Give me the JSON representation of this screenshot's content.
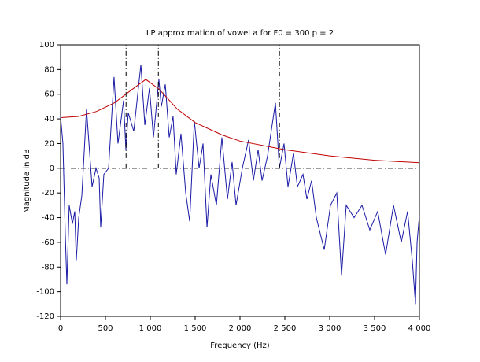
{
  "chart_data": {
    "type": "line",
    "title": "LP approximation of vowel a for F0 = 300 p = 2",
    "xlabel": "Frequency (Hz)",
    "ylabel": "Magnitude in dB",
    "xlim": [
      0,
      4000
    ],
    "ylim": [
      -120,
      100
    ],
    "xticks": [
      0,
      500,
      {
        "value": 1000,
        "label": "1 000"
      },
      {
        "value": 1500,
        "label": "1 500"
      },
      {
        "value": 2000,
        "label": "2 000"
      },
      {
        "value": 2500,
        "label": "2 500"
      },
      {
        "value": 3000,
        "label": "3 000"
      },
      {
        "value": 3500,
        "label": "3 500"
      },
      {
        "value": 4000,
        "label": "4 000"
      }
    ],
    "yticks": [
      -120,
      -100,
      -80,
      -60,
      -40,
      -20,
      0,
      20,
      40,
      60,
      80,
      100
    ],
    "markers_x": [
      730,
      1090,
      2440
    ],
    "hlines": [
      0
    ],
    "series": [
      {
        "color": "#1a1aa6",
        "x": [
          0,
          26,
          53,
          70,
          96,
          132,
          158,
          175,
          202,
          237,
          289,
          351,
          395,
          430,
          447,
          482,
          535,
          596,
          640,
          702,
          728,
          754,
          816,
          895,
          939,
          991,
          1035,
          1096,
          1123,
          1167,
          1211,
          1254,
          1289,
          1342,
          1395,
          1439,
          1491,
          1544,
          1588,
          1632,
          1675,
          1737,
          1798,
          1860,
          1912,
          1956,
          2026,
          2096,
          2149,
          2202,
          2246,
          2307,
          2395,
          2439,
          2491,
          2535,
          2596,
          2640,
          2702,
          2746,
          2798,
          2851,
          2939,
          3009,
          3079,
          3132,
          3184,
          3272,
          3360,
          3447,
          3535,
          3623,
          3711,
          3798,
          3868,
          3921,
          3956,
          3974,
          4000
        ],
        "values": [
          42,
          20,
          -55,
          -94,
          -30,
          -45,
          -35,
          -75,
          -40,
          -22,
          48,
          -15,
          0,
          -8,
          -48,
          -5,
          0,
          74,
          20,
          55,
          15,
          45,
          30,
          84,
          35,
          65,
          25,
          72,
          50,
          68,
          25,
          42,
          -5,
          28,
          -20,
          -43,
          38,
          0,
          20,
          -48,
          -5,
          -30,
          25,
          -25,
          5,
          -30,
          0,
          23,
          -10,
          15,
          -10,
          10,
          53,
          0,
          20,
          -15,
          12,
          -15,
          -5,
          -25,
          -10,
          -40,
          -66,
          -30,
          -20,
          -87,
          -30,
          -40,
          -30,
          -50,
          -35,
          -70,
          -30,
          -60,
          -35,
          -75,
          -110,
          -60,
          -38
        ]
      },
      {
        "color": "#c00000",
        "x": [
          0,
          200,
          400,
          600,
          800,
          950,
          1100,
          1300,
          1500,
          1800,
          2000,
          2500,
          3000,
          3500,
          4000
        ],
        "values": [
          41,
          42,
          46,
          53,
          64,
          72,
          64,
          48,
          37,
          27,
          22,
          15,
          10,
          6.5,
          4.5
        ]
      }
    ]
  }
}
